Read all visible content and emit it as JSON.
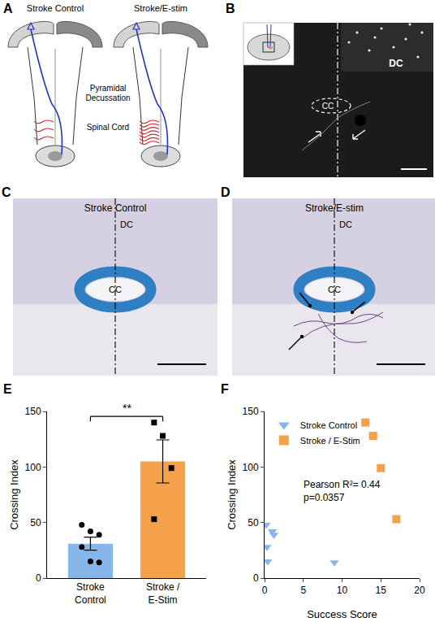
{
  "panels": {
    "A": {
      "label": "A",
      "left_title": "Stroke Control",
      "right_title": "Stroke/E-stim",
      "labels": [
        "Pyramidal Decussation",
        "Spinal Cord"
      ]
    },
    "B": {
      "label": "B",
      "labels": [
        "DC",
        "CC"
      ]
    },
    "C": {
      "label": "C",
      "title": "Stroke Control",
      "labels": [
        "DC",
        "CC"
      ]
    },
    "D": {
      "label": "D",
      "title": "Stroke/E-stim",
      "labels": [
        "DC",
        "CC"
      ]
    }
  },
  "chart_data": [
    {
      "panel": "E",
      "type": "bar",
      "categories": [
        "Stroke Control",
        "Stroke / E-Stim"
      ],
      "values": [
        31,
        105
      ],
      "error": [
        5.9,
        19.4
      ],
      "colors": [
        "#86b6ea",
        "#f5a14b"
      ],
      "points": [
        {
          "name": "Stroke Control",
          "marker": "circle",
          "values": [
            48,
            42,
            39,
            28,
            15,
            14
          ]
        },
        {
          "name": "Stroke / E-Stim",
          "marker": "square",
          "values": [
            140,
            128,
            99,
            53
          ]
        }
      ],
      "y_label": "Crossing Index",
      "ylim": [
        0,
        150
      ],
      "yticks": [
        0,
        50,
        100,
        150
      ],
      "annotations": [
        "**"
      ],
      "grid": false
    },
    {
      "panel": "F",
      "type": "scatter",
      "series": [
        {
          "name": "Stroke Control",
          "color": "#86b6ea",
          "marker": "triangle-down",
          "x": [
            0.2,
            1,
            1.2,
            0.3,
            0.4,
            9
          ],
          "values": [
            48,
            42,
            39,
            28,
            15,
            14
          ]
        },
        {
          "name": "Stroke / E-Stim",
          "color": "#f5a14b",
          "marker": "square",
          "x": [
            13,
            14,
            15,
            17
          ],
          "values": [
            140,
            128,
            99,
            53
          ]
        }
      ],
      "x_label": "Success Score",
      "y_label": "Crossing Index",
      "xlim": [
        0,
        20
      ],
      "xticks": [
        0,
        5,
        10,
        15,
        20
      ],
      "ylim": [
        0,
        150
      ],
      "yticks": [
        0,
        50,
        100,
        150
      ],
      "annotations": [
        "Pearson R²= 0.44",
        "p=0.0357"
      ],
      "legend": "upper left",
      "grid": false
    }
  ]
}
